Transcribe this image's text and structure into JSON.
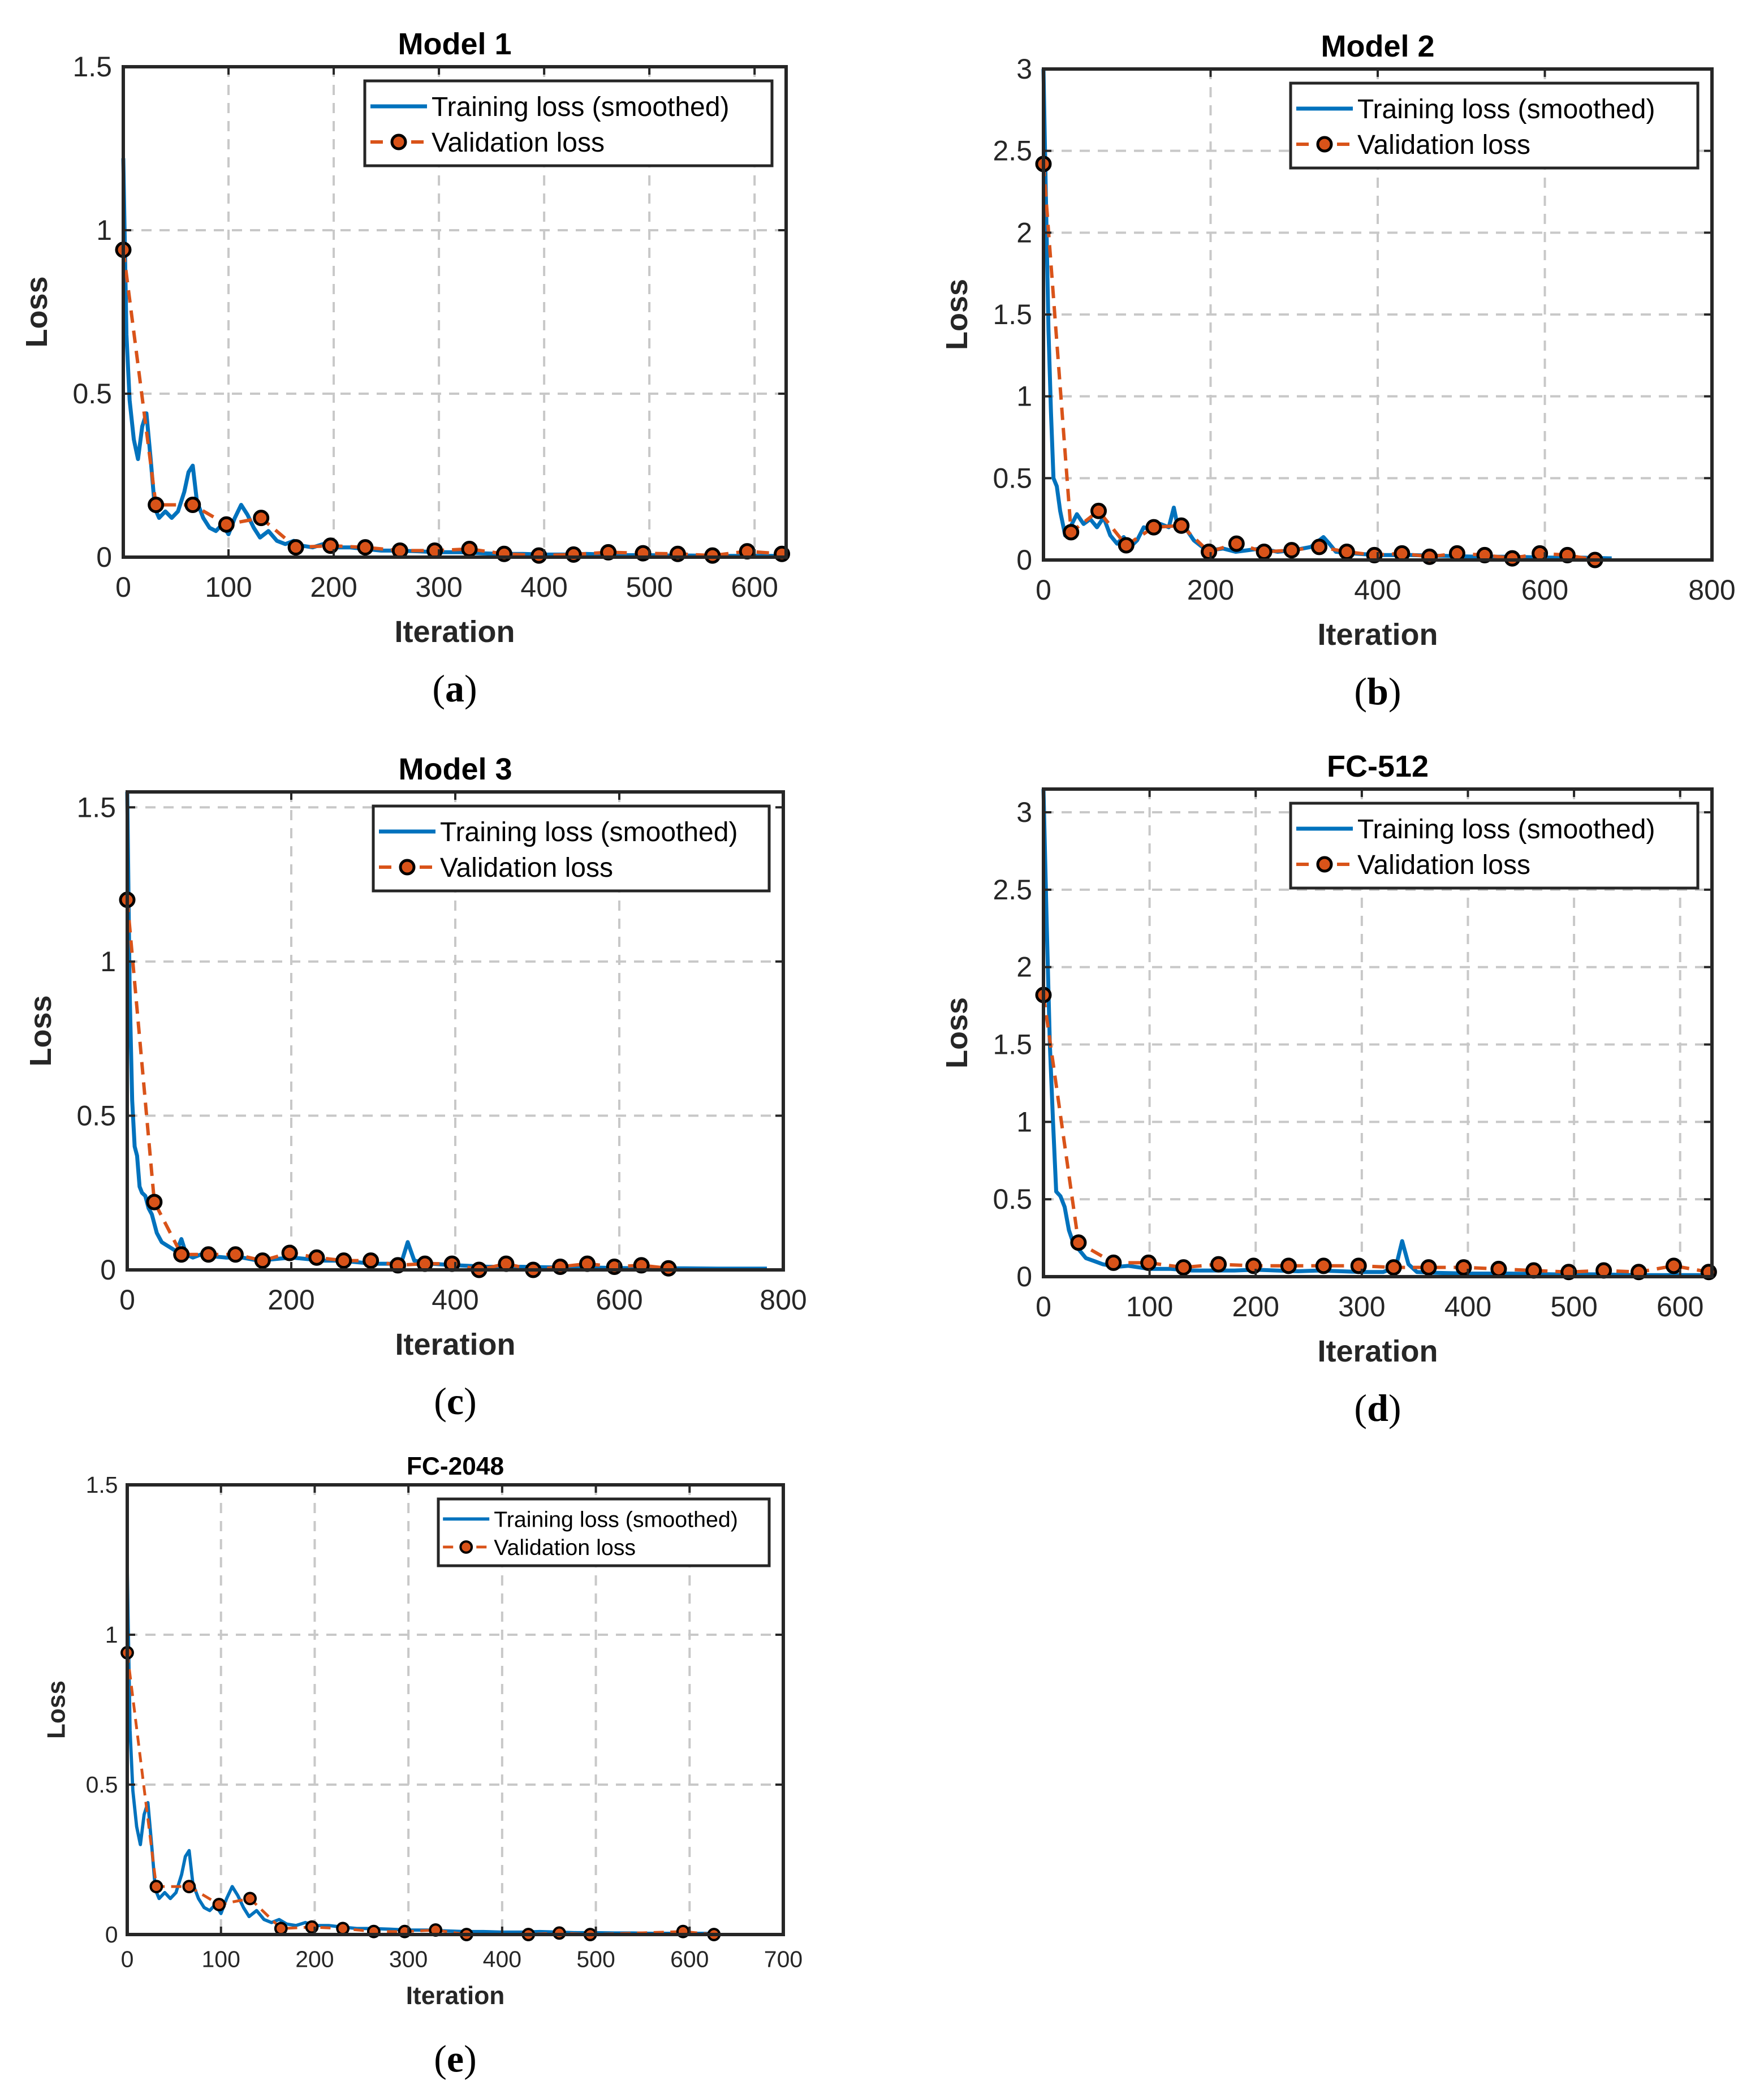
{
  "colors": {
    "training": "#0072BD",
    "validation": "#D95319",
    "marker_face": "#D95319",
    "marker_edge": "#000000",
    "grid": "#c8c8c8",
    "axis": "#262626"
  },
  "chart_data": [
    {
      "type": "line",
      "title": "Model 1",
      "caption_letter": "a",
      "xlabel": "Iteration",
      "ylabel": "Loss",
      "xlim": [
        0,
        630
      ],
      "ylim": [
        0,
        1.5
      ],
      "xticks": [
        0,
        100,
        200,
        300,
        400,
        500,
        600
      ],
      "yticks": [
        0,
        0.5,
        1,
        1.5
      ],
      "ytick_labels": [
        "0",
        "0.5",
        "1",
        "1.5"
      ],
      "legend": {
        "training": "Training loss (smoothed)",
        "validation": "Validation loss",
        "position": "top-right"
      },
      "training_x": [
        0,
        3,
        6,
        10,
        14,
        18,
        22,
        26,
        30,
        34,
        40,
        46,
        52,
        58,
        62,
        66,
        70,
        76,
        82,
        88,
        94,
        100,
        106,
        112,
        118,
        124,
        130,
        138,
        146,
        154,
        162,
        170,
        180,
        190,
        200,
        215,
        230,
        245,
        260,
        280,
        300,
        320,
        340,
        360,
        380,
        400,
        420,
        440,
        460,
        480,
        500,
        520,
        540,
        560,
        580,
        600,
        630
      ],
      "training_y": [
        1.22,
        0.68,
        0.48,
        0.36,
        0.3,
        0.4,
        0.44,
        0.3,
        0.15,
        0.12,
        0.14,
        0.12,
        0.14,
        0.2,
        0.26,
        0.28,
        0.17,
        0.12,
        0.09,
        0.08,
        0.1,
        0.07,
        0.12,
        0.16,
        0.13,
        0.09,
        0.06,
        0.08,
        0.05,
        0.04,
        0.05,
        0.035,
        0.03,
        0.04,
        0.03,
        0.03,
        0.025,
        0.02,
        0.02,
        0.018,
        0.015,
        0.015,
        0.012,
        0.01,
        0.01,
        0.008,
        0.008,
        0.01,
        0.008,
        0.006,
        0.006,
        0.005,
        0.005,
        0.004,
        0.004,
        0.004,
        0.004
      ],
      "validation_x": [
        0,
        31,
        66,
        98,
        131,
        164,
        197,
        230,
        263,
        296,
        329,
        362,
        395,
        428,
        461,
        494,
        527,
        560,
        593,
        626
      ],
      "validation_y": [
        0.94,
        0.16,
        0.16,
        0.1,
        0.12,
        0.03,
        0.035,
        0.03,
        0.02,
        0.02,
        0.025,
        0.01,
        0.005,
        0.008,
        0.015,
        0.012,
        0.01,
        0.005,
        0.018,
        0.01
      ]
    },
    {
      "type": "line",
      "title": "Model 2",
      "caption_letter": "b",
      "xlabel": "Iteration",
      "ylabel": "Loss",
      "xlim": [
        0,
        800
      ],
      "ylim": [
        0,
        3
      ],
      "xticks": [
        0,
        200,
        400,
        600,
        800
      ],
      "yticks": [
        0,
        0.5,
        1,
        1.5,
        2,
        2.5,
        3
      ],
      "ytick_labels": [
        "0",
        "0.5",
        "1",
        "1.5",
        "2",
        "2.5",
        "3"
      ],
      "legend": {
        "training": "Training loss (smoothed)",
        "validation": "Validation loss",
        "position": "top-right"
      },
      "training_x": [
        0,
        3,
        6,
        9,
        12,
        16,
        20,
        26,
        32,
        40,
        48,
        56,
        64,
        72,
        80,
        88,
        96,
        104,
        112,
        120,
        130,
        140,
        150,
        156,
        160,
        166,
        172,
        180,
        190,
        200,
        215,
        230,
        245,
        260,
        280,
        300,
        320,
        335,
        342,
        350,
        370,
        400,
        440,
        480,
        520,
        560,
        600,
        640,
        680
      ],
      "training_y": [
        3.0,
        2.2,
        1.4,
        0.9,
        0.5,
        0.45,
        0.3,
        0.15,
        0.2,
        0.28,
        0.22,
        0.25,
        0.2,
        0.26,
        0.15,
        0.1,
        0.14,
        0.08,
        0.12,
        0.2,
        0.18,
        0.22,
        0.2,
        0.32,
        0.22,
        0.24,
        0.18,
        0.12,
        0.08,
        0.06,
        0.07,
        0.05,
        0.06,
        0.07,
        0.05,
        0.06,
        0.08,
        0.14,
        0.1,
        0.05,
        0.04,
        0.03,
        0.03,
        0.025,
        0.02,
        0.02,
        0.015,
        0.015,
        0.01
      ],
      "validation_x": [
        0,
        33,
        66,
        99,
        132,
        165,
        198,
        231,
        264,
        297,
        330,
        363,
        396,
        429,
        462,
        495,
        528,
        561,
        594,
        627,
        660
      ],
      "validation_y": [
        2.42,
        0.17,
        0.3,
        0.09,
        0.2,
        0.21,
        0.05,
        0.1,
        0.05,
        0.06,
        0.08,
        0.05,
        0.03,
        0.04,
        0.02,
        0.04,
        0.03,
        0.01,
        0.04,
        0.03,
        0.0
      ]
    },
    {
      "type": "line",
      "title": "Model 3",
      "caption_letter": "c",
      "xlabel": "Iteration",
      "ylabel": "Loss",
      "xlim": [
        0,
        800
      ],
      "ylim": [
        0,
        1.55
      ],
      "xticks": [
        0,
        200,
        400,
        600,
        800
      ],
      "yticks": [
        0,
        0.5,
        1,
        1.5
      ],
      "ytick_labels": [
        "0",
        "0.5",
        "1",
        "1.5"
      ],
      "legend": {
        "training": "Training loss (smoothed)",
        "validation": "Validation loss",
        "position": "top-right"
      },
      "training_x": [
        0,
        3,
        6,
        9,
        12,
        15,
        18,
        22,
        26,
        30,
        36,
        42,
        48,
        54,
        60,
        66,
        72,
        80,
        90,
        100,
        120,
        140,
        160,
        180,
        200,
        220,
        240,
        260,
        280,
        300,
        320,
        335,
        342,
        350,
        370,
        400,
        440,
        480,
        520,
        560,
        600,
        640,
        680,
        720,
        780
      ],
      "training_y": [
        1.55,
        0.9,
        0.55,
        0.4,
        0.37,
        0.27,
        0.25,
        0.24,
        0.2,
        0.18,
        0.12,
        0.09,
        0.08,
        0.07,
        0.06,
        0.1,
        0.05,
        0.04,
        0.05,
        0.045,
        0.04,
        0.04,
        0.03,
        0.035,
        0.04,
        0.035,
        0.03,
        0.03,
        0.025,
        0.02,
        0.02,
        0.03,
        0.09,
        0.03,
        0.02,
        0.015,
        0.01,
        0.01,
        0.008,
        0.008,
        0.006,
        0.005,
        0.005,
        0.004,
        0.004
      ],
      "validation_x": [
        0,
        33,
        66,
        99,
        132,
        165,
        198,
        231,
        264,
        297,
        330,
        363,
        396,
        429,
        462,
        495,
        528,
        561,
        594,
        627,
        660
      ],
      "validation_y": [
        1.2,
        0.22,
        0.05,
        0.05,
        0.05,
        0.03,
        0.055,
        0.04,
        0.03,
        0.03,
        0.015,
        0.02,
        0.02,
        0.0,
        0.02,
        0.0,
        0.01,
        0.02,
        0.01,
        0.015,
        0.005
      ]
    },
    {
      "type": "line",
      "title": "FC-512",
      "caption_letter": "d",
      "xlabel": "Iteration",
      "ylabel": "Loss",
      "xlim": [
        0,
        630
      ],
      "ylim": [
        0,
        3.15
      ],
      "xticks": [
        0,
        100,
        200,
        300,
        400,
        500,
        600
      ],
      "yticks": [
        0,
        0.5,
        1,
        1.5,
        2,
        2.5,
        3
      ],
      "ytick_labels": [
        "0",
        "0.5",
        "1",
        "1.5",
        "2",
        "2.5",
        "3"
      ],
      "legend": {
        "training": "Training loss (smoothed)",
        "validation": "Validation loss",
        "position": "top-right"
      },
      "training_x": [
        0,
        3,
        6,
        9,
        12,
        16,
        20,
        24,
        28,
        34,
        40,
        48,
        56,
        64,
        72,
        80,
        90,
        100,
        120,
        140,
        160,
        180,
        200,
        220,
        240,
        260,
        280,
        300,
        320,
        332,
        338,
        344,
        352,
        370,
        400,
        440,
        480,
        520,
        560,
        600,
        630
      ],
      "training_y": [
        3.15,
        2.3,
        1.5,
        1.0,
        0.55,
        0.52,
        0.45,
        0.3,
        0.22,
        0.17,
        0.12,
        0.1,
        0.08,
        0.07,
        0.065,
        0.07,
        0.06,
        0.05,
        0.05,
        0.04,
        0.04,
        0.04,
        0.045,
        0.04,
        0.035,
        0.04,
        0.035,
        0.03,
        0.03,
        0.06,
        0.23,
        0.08,
        0.03,
        0.025,
        0.02,
        0.02,
        0.015,
        0.015,
        0.01,
        0.01,
        0.01
      ],
      "validation_x": [
        0,
        33,
        66,
        99,
        132,
        165,
        198,
        231,
        264,
        297,
        330,
        363,
        396,
        429,
        462,
        495,
        528,
        561,
        594,
        627
      ],
      "validation_y": [
        1.82,
        0.22,
        0.09,
        0.09,
        0.06,
        0.08,
        0.07,
        0.07,
        0.07,
        0.07,
        0.06,
        0.06,
        0.06,
        0.05,
        0.04,
        0.03,
        0.04,
        0.03,
        0.07,
        0.03
      ]
    },
    {
      "type": "line",
      "title": "FC-2048",
      "caption_letter": "e",
      "xlabel": "Iteration",
      "ylabel": "Loss",
      "xlim": [
        0,
        700
      ],
      "ylim": [
        0,
        1.5
      ],
      "xticks": [
        0,
        100,
        200,
        300,
        400,
        500,
        600,
        700
      ],
      "yticks": [
        0,
        0.5,
        1,
        1.5
      ],
      "ytick_labels": [
        "0",
        "0.5",
        "1",
        "1.5"
      ],
      "legend": {
        "training": "Training loss (smoothed)",
        "validation": "Validation loss",
        "position": "top-right"
      },
      "training_x": [
        0,
        3,
        6,
        10,
        14,
        18,
        22,
        26,
        30,
        34,
        40,
        46,
        52,
        58,
        62,
        66,
        70,
        76,
        82,
        88,
        94,
        100,
        106,
        112,
        118,
        124,
        130,
        138,
        146,
        154,
        162,
        170,
        180,
        190,
        200,
        215,
        230,
        245,
        260,
        280,
        300,
        320,
        340,
        360,
        380,
        400,
        420,
        440,
        460,
        480,
        500,
        520,
        540,
        560,
        580,
        600,
        630
      ],
      "training_y": [
        1.22,
        0.68,
        0.48,
        0.36,
        0.3,
        0.4,
        0.44,
        0.3,
        0.15,
        0.12,
        0.14,
        0.12,
        0.14,
        0.2,
        0.26,
        0.28,
        0.17,
        0.12,
        0.09,
        0.08,
        0.1,
        0.07,
        0.12,
        0.16,
        0.13,
        0.09,
        0.06,
        0.08,
        0.05,
        0.04,
        0.05,
        0.035,
        0.03,
        0.04,
        0.03,
        0.03,
        0.025,
        0.02,
        0.02,
        0.018,
        0.015,
        0.015,
        0.012,
        0.01,
        0.01,
        0.008,
        0.008,
        0.01,
        0.008,
        0.006,
        0.006,
        0.005,
        0.005,
        0.004,
        0.004,
        0.004,
        0.004
      ],
      "validation_x": [
        0,
        31,
        66,
        98,
        131,
        164,
        197,
        230,
        263,
        296,
        329,
        362,
        428,
        461,
        494,
        593,
        626
      ],
      "validation_y": [
        0.94,
        0.16,
        0.16,
        0.1,
        0.12,
        0.02,
        0.025,
        0.02,
        0.01,
        0.01,
        0.015,
        0.0,
        0.0,
        0.005,
        0.0,
        0.01,
        0.0
      ]
    }
  ]
}
